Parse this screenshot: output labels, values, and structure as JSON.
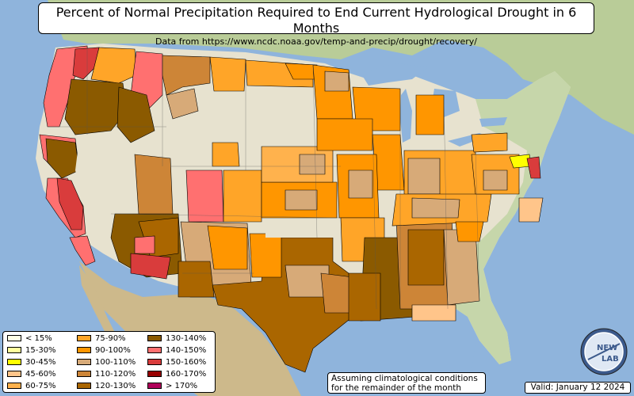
{
  "title": "Percent of Normal Precipitation Required to End Current Hydrological Drought in 6 Months",
  "subtitle": "Data from https://www.ncdc.noaa.gov/temp-and-precip/drought/recovery/",
  "note": {
    "line1": "Assuming climatological conditions",
    "line2": "for the remainder of the month"
  },
  "valid_label": "Valid: January 12 2024",
  "logo": {
    "text_top": "NEW",
    "text_bottom": "LAB"
  },
  "legend": [
    {
      "label": "< 15%",
      "color": "#ffffe6"
    },
    {
      "label": "15-30%",
      "color": "#ffff9e"
    },
    {
      "label": "30-45%",
      "color": "#ffff00"
    },
    {
      "label": "45-60%",
      "color": "#ffc58a"
    },
    {
      "label": "60-75%",
      "color": "#ffb24d"
    },
    {
      "label": "75-90%",
      "color": "#ffa528"
    },
    {
      "label": "90-100%",
      "color": "#ff9600"
    },
    {
      "label": "100-110%",
      "color": "#d7aa78"
    },
    {
      "label": "110-120%",
      "color": "#cd8537"
    },
    {
      "label": "120-130%",
      "color": "#aa6600"
    },
    {
      "label": "130-140%",
      "color": "#8b5a00"
    },
    {
      "label": "140-150%",
      "color": "#ff7070"
    },
    {
      "label": "150-160%",
      "color": "#d93c3c"
    },
    {
      "label": "160-170%",
      "color": "#990000"
    },
    {
      "label": "> 170%",
      "color": "#b0005a"
    }
  ],
  "colors": {
    "ocean": "#8fb4dc",
    "land_terrain": "#d9d2b0",
    "land_green": "#b8cf97",
    "no_drought": "#f2f2ef",
    "mexico_canada": "#c9d3a4"
  }
}
